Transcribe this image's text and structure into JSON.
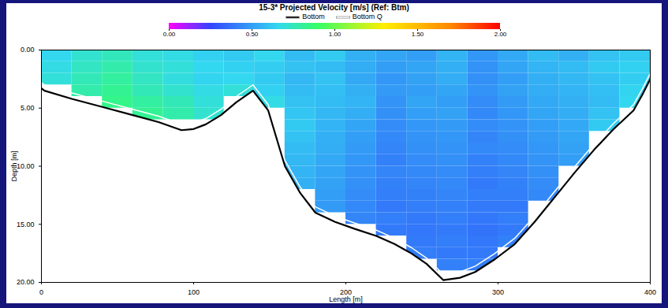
{
  "chart_data": {
    "type": "heatmap",
    "title": "15-3* Projected Velocity [m/s] (Ref: Btm)",
    "x_label": "Length [m]",
    "y_label": "Depth [m]",
    "xlim": [
      0,
      400
    ],
    "ylim": [
      0,
      20
    ],
    "xticks": [
      0,
      100,
      200,
      300,
      400
    ],
    "yticks": [
      {
        "value": 0,
        "label": "0.00"
      },
      {
        "value": 5,
        "label": "5.00"
      },
      {
        "value": 10,
        "label": "10.00"
      },
      {
        "value": 15,
        "label": "15.00"
      },
      {
        "value": 20,
        "label": "20.00"
      }
    ],
    "x_edges": [
      0,
      20,
      40,
      60,
      80,
      100,
      120,
      140,
      160,
      180,
      200,
      220,
      240,
      260,
      280,
      300,
      320,
      340,
      360,
      380,
      400
    ],
    "depth_edges": [
      0,
      1,
      2,
      3,
      4,
      5,
      6,
      7,
      8,
      9,
      10,
      11,
      12,
      13,
      14,
      15,
      16,
      17,
      18,
      19,
      20
    ],
    "velocity": [
      [
        0.66,
        0.72,
        0.75,
        0.7,
        0.68,
        0.64,
        0.62,
        0.66,
        0.58,
        0.62,
        0.55,
        0.52,
        0.5,
        0.56,
        0.48,
        0.53,
        0.58,
        0.55,
        0.6,
        0.62
      ],
      [
        0.68,
        0.74,
        0.78,
        0.72,
        0.7,
        0.66,
        0.64,
        0.63,
        0.6,
        0.58,
        0.54,
        0.5,
        0.52,
        0.55,
        0.47,
        0.52,
        0.56,
        0.58,
        0.62,
        0.64
      ],
      [
        0.7,
        0.76,
        0.8,
        0.74,
        0.69,
        0.65,
        0.66,
        0.62,
        0.57,
        0.6,
        0.53,
        0.48,
        0.51,
        0.54,
        0.46,
        0.5,
        0.55,
        0.57,
        0.6,
        0.63
      ],
      [
        null,
        0.78,
        0.82,
        0.76,
        0.72,
        0.68,
        0.7,
        0.64,
        0.58,
        0.59,
        0.55,
        0.49,
        0.5,
        0.52,
        0.47,
        0.51,
        0.54,
        0.56,
        0.59,
        0.65
      ],
      [
        null,
        null,
        0.84,
        0.8,
        0.76,
        0.7,
        null,
        0.68,
        0.6,
        0.58,
        0.56,
        0.47,
        0.52,
        0.5,
        0.45,
        0.49,
        0.53,
        0.55,
        0.58,
        0.66
      ],
      [
        null,
        null,
        null,
        0.82,
        0.78,
        0.72,
        null,
        null,
        0.61,
        0.57,
        0.54,
        0.46,
        0.5,
        0.51,
        0.44,
        0.48,
        0.52,
        0.54,
        0.6,
        null
      ],
      [
        null,
        null,
        null,
        null,
        null,
        null,
        null,
        null,
        0.62,
        0.56,
        0.52,
        0.45,
        0.48,
        0.49,
        0.45,
        0.47,
        0.5,
        0.53,
        0.62,
        null
      ],
      [
        null,
        null,
        null,
        null,
        null,
        null,
        null,
        null,
        0.6,
        0.55,
        0.5,
        0.44,
        0.47,
        0.48,
        0.43,
        0.46,
        0.49,
        0.52,
        null,
        null
      ],
      [
        null,
        null,
        null,
        null,
        null,
        null,
        null,
        null,
        0.58,
        0.54,
        0.49,
        0.43,
        0.46,
        0.47,
        0.44,
        0.45,
        0.48,
        0.51,
        null,
        null
      ],
      [
        null,
        null,
        null,
        null,
        null,
        null,
        null,
        null,
        0.57,
        0.53,
        0.48,
        0.42,
        0.45,
        0.46,
        0.42,
        0.44,
        0.47,
        0.5,
        null,
        null
      ],
      [
        null,
        null,
        null,
        null,
        null,
        null,
        null,
        null,
        0.56,
        0.52,
        0.47,
        0.43,
        0.44,
        0.45,
        0.41,
        0.43,
        0.46,
        null,
        null,
        null
      ],
      [
        null,
        null,
        null,
        null,
        null,
        null,
        null,
        null,
        0.55,
        0.51,
        0.46,
        0.42,
        0.43,
        0.44,
        0.4,
        0.42,
        0.45,
        null,
        null,
        null
      ],
      [
        null,
        null,
        null,
        null,
        null,
        null,
        null,
        null,
        null,
        0.5,
        0.45,
        0.41,
        0.42,
        0.43,
        0.41,
        0.41,
        0.44,
        null,
        null,
        null
      ],
      [
        null,
        null,
        null,
        null,
        null,
        null,
        null,
        null,
        null,
        0.49,
        0.44,
        0.4,
        0.41,
        0.42,
        0.4,
        0.4,
        null,
        null,
        null,
        null
      ],
      [
        null,
        null,
        null,
        null,
        null,
        null,
        null,
        null,
        null,
        null,
        0.43,
        0.41,
        0.4,
        0.41,
        0.39,
        0.41,
        null,
        null,
        null,
        null
      ],
      [
        null,
        null,
        null,
        null,
        null,
        null,
        null,
        null,
        null,
        null,
        null,
        0.4,
        0.39,
        0.4,
        0.38,
        0.4,
        null,
        null,
        null,
        null
      ],
      [
        null,
        null,
        null,
        null,
        null,
        null,
        null,
        null,
        null,
        null,
        null,
        null,
        0.4,
        0.41,
        0.39,
        0.42,
        null,
        null,
        null,
        null
      ],
      [
        null,
        null,
        null,
        null,
        null,
        null,
        null,
        null,
        null,
        null,
        null,
        null,
        0.41,
        0.4,
        0.4,
        null,
        null,
        null,
        null,
        null
      ],
      [
        null,
        null,
        null,
        null,
        null,
        null,
        null,
        null,
        null,
        null,
        null,
        null,
        null,
        0.42,
        0.41,
        null,
        null,
        null,
        null,
        null
      ],
      [
        null,
        null,
        null,
        null,
        null,
        null,
        null,
        null,
        null,
        null,
        null,
        null,
        null,
        null,
        null,
        null,
        null,
        null,
        null,
        null
      ]
    ],
    "colorbar": {
      "range": [
        0,
        2
      ],
      "ticks": [
        {
          "value": 0,
          "label": "0.00"
        },
        {
          "value": 0.5,
          "label": "0.50"
        },
        {
          "value": 1,
          "label": "1.00"
        },
        {
          "value": 1.5,
          "label": "1.50"
        },
        {
          "value": 2,
          "label": "2.00"
        }
      ]
    },
    "series": [
      {
        "name": "Bottom",
        "color": "#000000",
        "x": [
          0,
          2,
          20,
          40,
          60,
          77,
          92,
          100,
          108,
          118,
          128,
          139,
          149,
          160,
          170,
          180,
          193,
          206,
          220,
          232,
          243,
          253,
          264,
          275,
          285,
          298,
          311,
          324,
          337,
          350,
          363,
          376,
          389,
          395,
          400
        ],
        "values": [
          3.3,
          3.5,
          4.2,
          4.9,
          5.6,
          6.2,
          6.9,
          6.8,
          6.4,
          5.6,
          4.5,
          3.5,
          5.2,
          10.0,
          12.3,
          14.0,
          14.8,
          15.4,
          16.0,
          16.7,
          17.5,
          18.4,
          19.8,
          19.6,
          19.1,
          18.0,
          16.7,
          14.8,
          12.7,
          10.6,
          8.6,
          6.8,
          5.2,
          3.8,
          2.5
        ]
      },
      {
        "name": "Bottom Q",
        "color": "#ffffff",
        "x": [
          0,
          2,
          20,
          40,
          60,
          77,
          92,
          100,
          108,
          118,
          128,
          139,
          149,
          160,
          170,
          180,
          193,
          206,
          220,
          232,
          243,
          253,
          264,
          275,
          285,
          298,
          311,
          324,
          337,
          350,
          363,
          376,
          389,
          395,
          400
        ],
        "values": [
          2.8,
          3.0,
          3.7,
          4.4,
          5.1,
          5.7,
          6.4,
          6.3,
          5.9,
          5.1,
          4.0,
          3.0,
          4.7,
          9.5,
          11.8,
          13.5,
          14.3,
          14.9,
          15.5,
          16.2,
          17.0,
          17.9,
          19.3,
          19.1,
          18.6,
          17.5,
          16.2,
          14.3,
          12.2,
          10.1,
          8.1,
          6.3,
          4.7,
          3.3,
          2.0
        ]
      }
    ]
  }
}
